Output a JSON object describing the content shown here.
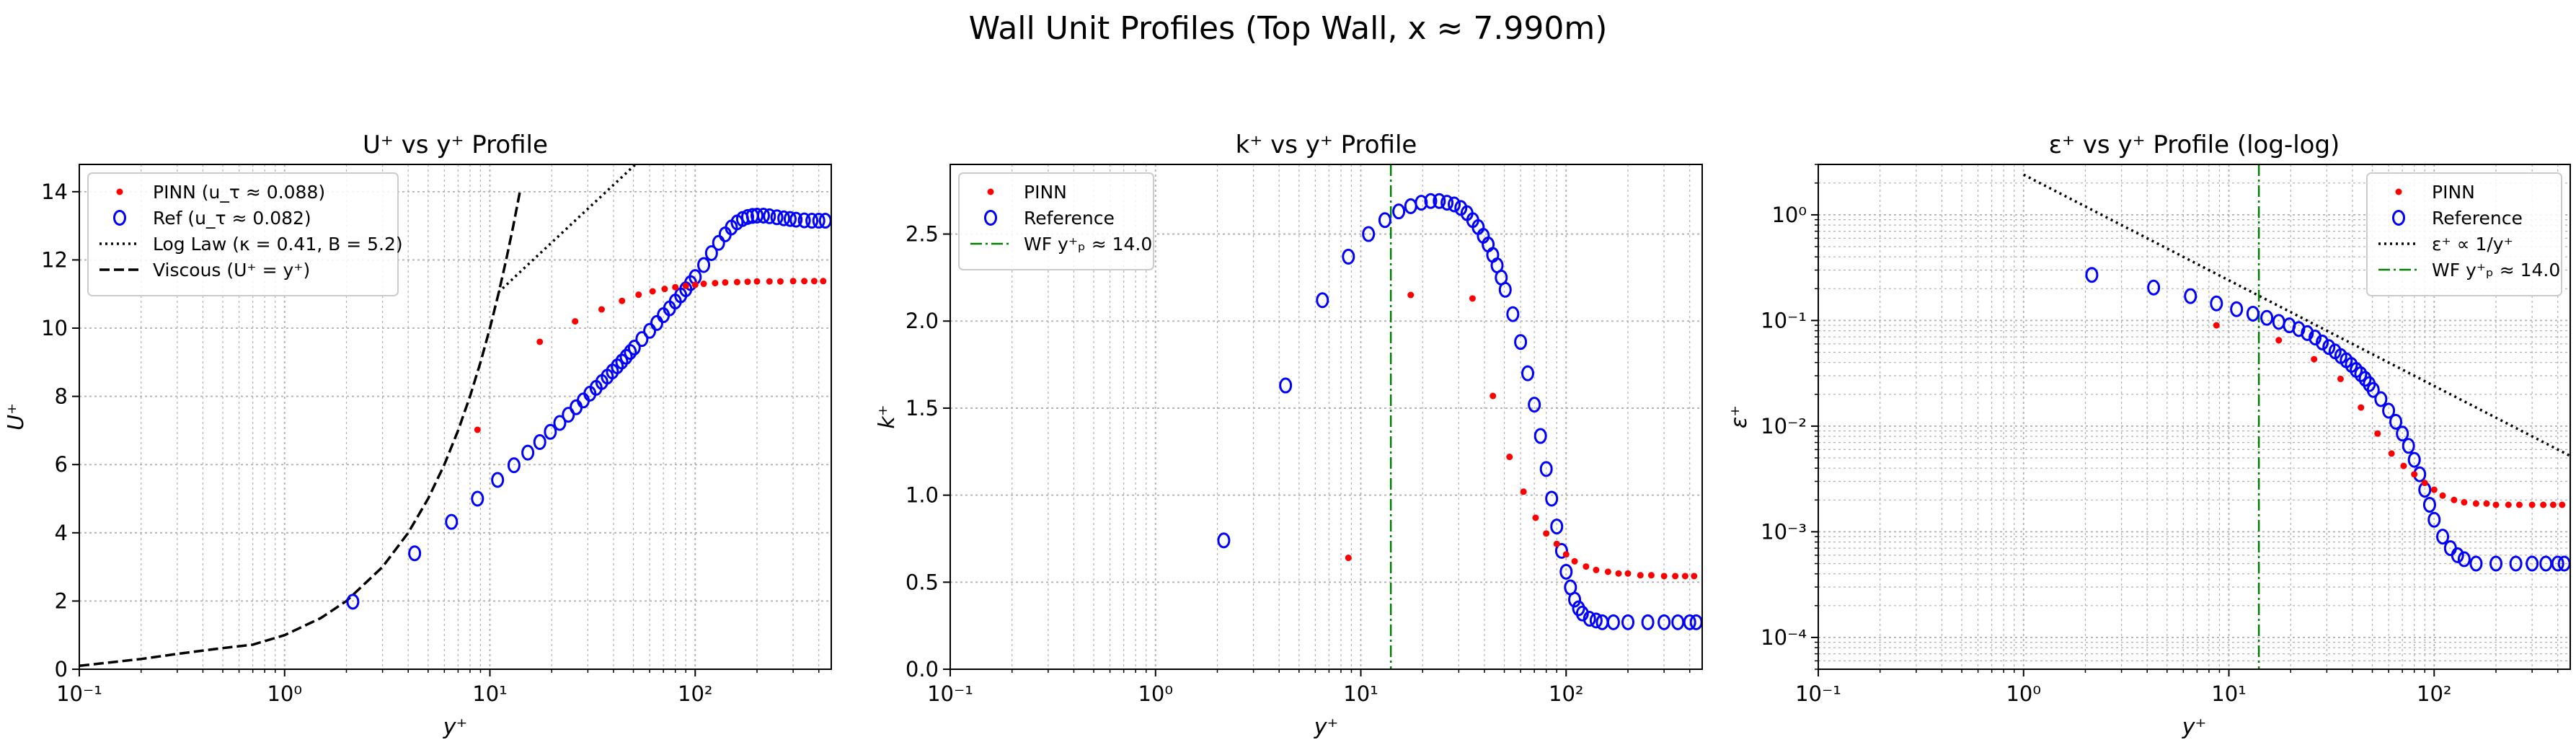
{
  "figure": {
    "title": "Wall Unit Profiles (Top Wall, x ≈ 7.990m)"
  },
  "colors": {
    "pinn": "#ff0000",
    "ref": "#0000ff",
    "loglaw": "#000000",
    "viscous": "#000000",
    "wf": "#008000",
    "grid": "#b0b0b0"
  },
  "chart_data": [
    {
      "type": "scatter",
      "title": "U⁺ vs y⁺ Profile",
      "xlabel": "y⁺",
      "ylabel": "U⁺",
      "xscale": "log",
      "yscale": "linear",
      "xlim": [
        0.1,
        460
      ],
      "ylim": [
        0,
        14.8
      ],
      "xticks": [
        0.1,
        1,
        10,
        100
      ],
      "xtick_labels": [
        "10⁻¹",
        "10⁰",
        "10¹",
        "10²"
      ],
      "yticks": [
        0,
        2,
        4,
        6,
        8,
        10,
        12,
        14
      ],
      "ytick_labels": [
        "0",
        "2",
        "4",
        "6",
        "8",
        "10",
        "12",
        "14"
      ],
      "grid": true,
      "legend_position": "upper-left",
      "legend": [
        {
          "label": "PINN (u_τ ≈ 0.088)",
          "kind": "pinn"
        },
        {
          "label": "Ref (u_τ ≈ 0.082)",
          "kind": "ref"
        },
        {
          "label": "Log Law (κ = 0.41, B = 5.2)",
          "kind": "loglaw"
        },
        {
          "label": "Viscous (U⁺ = y⁺)",
          "kind": "viscous"
        }
      ],
      "pinn": {
        "x": [
          8.7,
          17.5,
          26,
          35,
          44,
          53,
          62,
          71,
          80,
          90,
          100,
          110,
          125,
          140,
          160,
          180,
          200,
          230,
          260,
          300,
          340,
          380,
          420
        ],
        "y": [
          7.02,
          9.6,
          10.2,
          10.55,
          10.8,
          10.98,
          11.08,
          11.15,
          11.2,
          11.24,
          11.27,
          11.3,
          11.32,
          11.34,
          11.35,
          11.36,
          11.37,
          11.37,
          11.37,
          11.38,
          11.38,
          11.38,
          11.38
        ]
      },
      "ref": {
        "x": [
          2.15,
          4.3,
          6.5,
          8.7,
          10.9,
          13.1,
          15.3,
          17.5,
          19.7,
          21.9,
          24.1,
          26.3,
          28.5,
          30.7,
          32.9,
          35.1,
          37.3,
          39.5,
          41.7,
          43.9,
          46.1,
          48.3,
          50.5,
          55,
          60,
          65,
          70,
          75,
          80,
          85,
          90,
          95,
          100,
          110,
          120,
          130,
          140,
          150,
          160,
          170,
          180,
          190,
          200,
          215,
          230,
          250,
          270,
          290,
          310,
          340,
          370,
          400,
          430
        ],
        "y": [
          1.98,
          3.4,
          4.32,
          5.0,
          5.55,
          5.98,
          6.35,
          6.66,
          6.96,
          7.22,
          7.46,
          7.68,
          7.88,
          8.08,
          8.25,
          8.42,
          8.58,
          8.73,
          8.88,
          9.02,
          9.16,
          9.3,
          9.43,
          9.68,
          9.92,
          10.15,
          10.38,
          10.58,
          10.78,
          10.96,
          11.14,
          11.32,
          11.5,
          11.85,
          12.2,
          12.5,
          12.75,
          12.95,
          13.1,
          13.2,
          13.26,
          13.29,
          13.3,
          13.3,
          13.28,
          13.25,
          13.22,
          13.2,
          13.18,
          13.16,
          13.15,
          13.15,
          13.15
        ]
      },
      "loglaw": {
        "x": [
          11,
          15,
          20,
          30,
          40,
          52
        ],
        "y": [
          11.05,
          11.81,
          12.51,
          13.5,
          14.2,
          14.84
        ]
      },
      "viscous": {
        "x": [
          0.1,
          0.2,
          0.3,
          0.5,
          0.7,
          1,
          1.5,
          2,
          3,
          4,
          5,
          6,
          7,
          8,
          9,
          10,
          11,
          12,
          13,
          14
        ],
        "y": [
          0.1,
          0.3,
          0.45,
          0.62,
          0.72,
          1.0,
          1.5,
          2.0,
          3.0,
          4.0,
          5.0,
          6.0,
          7.0,
          8.0,
          9.0,
          10.0,
          11.0,
          12.0,
          13.0,
          14.0
        ]
      }
    },
    {
      "type": "scatter",
      "title": "k⁺ vs y⁺ Profile",
      "xlabel": "y⁺",
      "ylabel": "k⁺",
      "xscale": "log",
      "yscale": "linear",
      "xlim": [
        0.1,
        460
      ],
      "ylim": [
        0,
        2.9
      ],
      "xticks": [
        0.1,
        1,
        10,
        100
      ],
      "xtick_labels": [
        "10⁻¹",
        "10⁰",
        "10¹",
        "10²"
      ],
      "yticks": [
        0,
        0.5,
        1.0,
        1.5,
        2.0,
        2.5
      ],
      "ytick_labels": [
        "0.0",
        "0.5",
        "1.0",
        "1.5",
        "2.0",
        "2.5"
      ],
      "grid": true,
      "legend_position": "upper-left",
      "legend": [
        {
          "label": "PINN",
          "kind": "pinn"
        },
        {
          "label": "Reference",
          "kind": "ref"
        },
        {
          "label": "WF y⁺ₚ ≈ 14.0",
          "kind": "wf"
        }
      ],
      "wf_x": 14.0,
      "pinn": {
        "x": [
          8.7,
          17.5,
          35,
          44,
          53,
          62,
          71,
          80,
          90,
          100,
          110,
          125,
          140,
          160,
          180,
          200,
          230,
          260,
          300,
          340,
          380,
          420
        ],
        "y": [
          0.64,
          2.15,
          2.13,
          1.57,
          1.22,
          1.02,
          0.87,
          0.78,
          0.72,
          0.66,
          0.62,
          0.59,
          0.57,
          0.56,
          0.55,
          0.55,
          0.54,
          0.54,
          0.535,
          0.535,
          0.535,
          0.535
        ]
      },
      "ref": {
        "x": [
          2.15,
          4.3,
          6.5,
          8.7,
          10.9,
          13.1,
          15.3,
          17.5,
          19.7,
          21.9,
          24.1,
          26.3,
          28.5,
          30.7,
          32.9,
          35.1,
          37.3,
          39.5,
          41.7,
          43.9,
          46.1,
          48.3,
          50.5,
          55,
          60,
          65,
          70,
          75,
          80,
          85,
          90,
          95,
          100,
          105,
          110,
          115,
          120,
          130,
          140,
          150,
          170,
          200,
          250,
          300,
          350,
          400,
          430
        ],
        "y": [
          0.74,
          1.63,
          2.12,
          2.37,
          2.5,
          2.58,
          2.63,
          2.66,
          2.68,
          2.69,
          2.69,
          2.68,
          2.67,
          2.65,
          2.62,
          2.58,
          2.54,
          2.49,
          2.44,
          2.38,
          2.32,
          2.25,
          2.18,
          2.04,
          1.88,
          1.7,
          1.52,
          1.34,
          1.15,
          0.98,
          0.82,
          0.68,
          0.56,
          0.47,
          0.4,
          0.35,
          0.32,
          0.29,
          0.28,
          0.27,
          0.27,
          0.27,
          0.27,
          0.27,
          0.27,
          0.27,
          0.27
        ]
      }
    },
    {
      "type": "scatter",
      "title": "ε⁺ vs y⁺ Profile (log-log)",
      "xlabel": "y⁺",
      "ylabel": "ε⁺",
      "xscale": "log",
      "yscale": "log",
      "xlim": [
        0.1,
        460
      ],
      "ylim": [
        5e-05,
        3.0
      ],
      "xticks": [
        0.1,
        1,
        10,
        100
      ],
      "xtick_labels": [
        "10⁻¹",
        "10⁰",
        "10¹",
        "10²"
      ],
      "yticks": [
        0.0001,
        0.001,
        0.01,
        0.1,
        1
      ],
      "ytick_labels": [
        "10⁻⁴",
        "10⁻³",
        "10⁻²",
        "10⁻¹",
        "10⁰"
      ],
      "grid": true,
      "legend_position": "upper-right",
      "legend": [
        {
          "label": "PINN",
          "kind": "pinn"
        },
        {
          "label": "Reference",
          "kind": "ref"
        },
        {
          "label": "ε⁺ ∝ 1/y⁺",
          "kind": "loglaw"
        },
        {
          "label": "WF y⁺ₚ ≈ 14.0",
          "kind": "wf"
        }
      ],
      "wf_x": 14.0,
      "pinn": {
        "x": [
          8.7,
          17.5,
          26,
          35,
          44,
          53,
          62,
          71,
          80,
          90,
          100,
          110,
          125,
          140,
          160,
          180,
          200,
          230,
          260,
          300,
          340,
          380,
          420
        ],
        "y": [
          0.09,
          0.065,
          0.043,
          0.028,
          0.015,
          0.0085,
          0.0055,
          0.0042,
          0.0035,
          0.0029,
          0.0025,
          0.0022,
          0.002,
          0.0019,
          0.00185,
          0.00185,
          0.0018,
          0.0018,
          0.0018,
          0.0018,
          0.0018,
          0.0018,
          0.0018
        ]
      },
      "ref": {
        "x": [
          2.15,
          4.3,
          6.5,
          8.7,
          10.9,
          13.1,
          15.3,
          17.5,
          19.7,
          21.9,
          24.1,
          26.3,
          28.5,
          30.7,
          32.9,
          35.1,
          37.3,
          39.5,
          41.7,
          43.9,
          46.1,
          48.3,
          50.5,
          55,
          60,
          65,
          70,
          75,
          80,
          85,
          90,
          95,
          100,
          110,
          120,
          130,
          140,
          160,
          200,
          250,
          300,
          350,
          400,
          430
        ],
        "y": [
          0.27,
          0.205,
          0.17,
          0.145,
          0.128,
          0.116,
          0.106,
          0.097,
          0.09,
          0.083,
          0.076,
          0.069,
          0.062,
          0.056,
          0.051,
          0.046,
          0.042,
          0.038,
          0.034,
          0.031,
          0.028,
          0.025,
          0.022,
          0.018,
          0.014,
          0.011,
          0.0085,
          0.0065,
          0.0048,
          0.0035,
          0.0025,
          0.0018,
          0.0013,
          0.0009,
          0.0007,
          0.0006,
          0.00055,
          0.0005,
          0.0005,
          0.0005,
          0.0005,
          0.0005,
          0.0005,
          0.0005
        ]
      },
      "inv_y": {
        "x": [
          1.0,
          460
        ],
        "y": [
          2.4,
          0.00522
        ]
      }
    }
  ]
}
